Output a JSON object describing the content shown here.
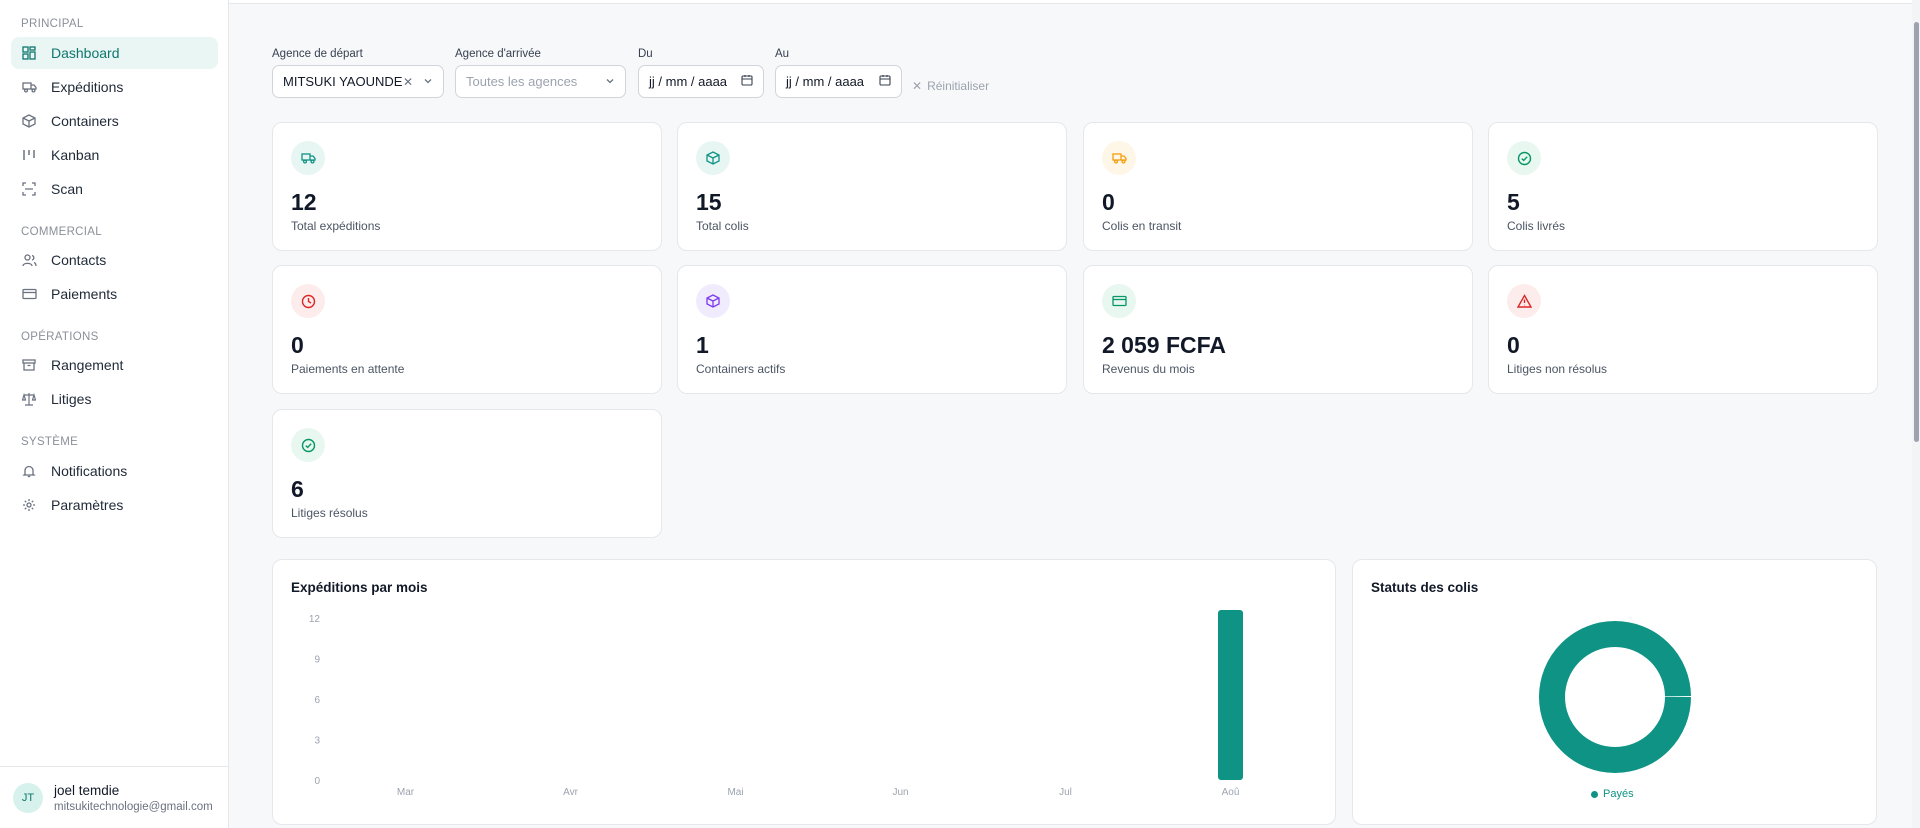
{
  "sidebar": {
    "sections": [
      {
        "label": "PRINCIPAL",
        "items": [
          {
            "label": "Dashboard",
            "icon": "dashboard-icon",
            "active": true
          },
          {
            "label": "Expéditions",
            "icon": "truck-icon"
          },
          {
            "label": "Containers",
            "icon": "box-icon"
          },
          {
            "label": "Kanban",
            "icon": "kanban-icon"
          },
          {
            "label": "Scan",
            "icon": "scan-icon"
          }
        ]
      },
      {
        "label": "COMMERCIAL",
        "items": [
          {
            "label": "Contacts",
            "icon": "users-icon"
          },
          {
            "label": "Paiements",
            "icon": "card-icon"
          }
        ]
      },
      {
        "label": "OPÉRATIONS",
        "items": [
          {
            "label": "Rangement",
            "icon": "archive-icon"
          },
          {
            "label": "Litiges",
            "icon": "scale-icon"
          }
        ]
      },
      {
        "label": "SYSTÈME",
        "items": [
          {
            "label": "Notifications",
            "icon": "bell-icon"
          },
          {
            "label": "Paramètres",
            "icon": "gear-icon"
          }
        ]
      }
    ],
    "user": {
      "initials": "JT",
      "name": "joel temdie",
      "email": "mitsukitechnologie@gmail.com"
    }
  },
  "filters": {
    "departure": {
      "label": "Agence de départ",
      "value": "MITSUKI YAOUNDE"
    },
    "arrival": {
      "label": "Agence d'arrivée",
      "placeholder": "Toutes les agences"
    },
    "from": {
      "label": "Du",
      "value": "jj / mm / aaaa"
    },
    "to": {
      "label": "Au",
      "value": "jj / mm / aaaa"
    },
    "reset_label": "Réinitialiser"
  },
  "stats": [
    {
      "value": "12",
      "label": "Total expéditions",
      "icon": "truck-icon",
      "color": "#0f9384",
      "bg": "#e7f6f3"
    },
    {
      "value": "15",
      "label": "Total colis",
      "icon": "box-icon",
      "color": "#0f9384",
      "bg": "#e7f6f3"
    },
    {
      "value": "0",
      "label": "Colis en transit",
      "icon": "truck-icon",
      "color": "#f59e0b",
      "bg": "#fef6e7"
    },
    {
      "value": "5",
      "label": "Colis livrés",
      "icon": "check-circle-icon",
      "color": "#059669",
      "bg": "#e8f7ef"
    },
    {
      "value": "0",
      "label": "Paiements en attente",
      "icon": "clock-icon",
      "color": "#dc2626",
      "bg": "#fdecec"
    },
    {
      "value": "1",
      "label": "Containers actifs",
      "icon": "box-icon",
      "color": "#7c3aed",
      "bg": "#f1ecfd"
    },
    {
      "value": "2 059 FCFA",
      "label": "Revenus du mois",
      "icon": "card-icon",
      "color": "#059669",
      "bg": "#e8f7ef"
    },
    {
      "value": "0",
      "label": "Litiges non résolus",
      "icon": "alert-icon",
      "color": "#dc2626",
      "bg": "#fdecec"
    },
    {
      "value": "6",
      "label": "Litiges résolus",
      "icon": "check-circle-icon",
      "color": "#059669",
      "bg": "#e8f7ef"
    }
  ],
  "shipments_chart": {
    "title": "Expéditions par mois",
    "chart_data": {
      "type": "bar",
      "categories": [
        "Mar",
        "Avr",
        "Mai",
        "Jun",
        "Jul",
        "Aoû"
      ],
      "values": [
        0,
        0,
        0,
        0,
        0,
        12
      ],
      "yticks": [
        0,
        3,
        6,
        9,
        12
      ],
      "ylim": [
        0,
        12
      ],
      "color": "#0f9384"
    }
  },
  "status_chart": {
    "title": "Statuts des colis",
    "chart_data": {
      "type": "pie",
      "categories": [
        "Payés"
      ],
      "values": [
        100
      ],
      "color": "#0f9384"
    },
    "legend": "Payés"
  }
}
